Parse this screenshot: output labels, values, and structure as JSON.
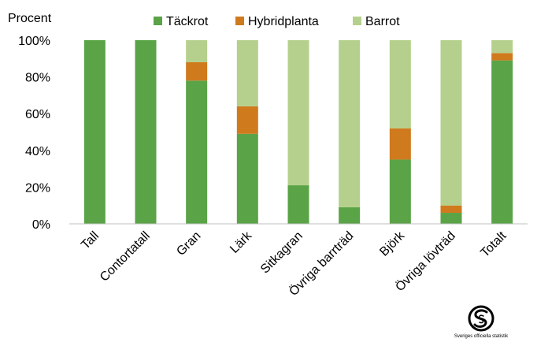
{
  "chart_data": {
    "type": "bar",
    "stacked": true,
    "ylabel": "Procent",
    "xlabel": "",
    "ylim": [
      0,
      100
    ],
    "yticks": [
      0,
      20,
      40,
      60,
      80,
      100
    ],
    "ytick_labels": [
      "0%",
      "20%",
      "40%",
      "60%",
      "80%",
      "100%"
    ],
    "categories": [
      "Tall",
      "Contortatall",
      "Gran",
      "Lärk",
      "Sitkagran",
      "Övriga barrträd",
      "Björk",
      "Övriga lövträd",
      "Totalt"
    ],
    "series": [
      {
        "name": "Täckrot",
        "color": "#5aa346",
        "values": [
          100,
          100,
          78,
          49,
          21,
          9,
          35,
          6,
          89
        ]
      },
      {
        "name": "Hybridplanta",
        "color": "#d07a1e",
        "values": [
          0,
          0,
          10,
          15,
          0,
          0,
          17,
          4,
          4
        ]
      },
      {
        "name": "Barrot",
        "color": "#b5d08c",
        "values": [
          0,
          0,
          12,
          36,
          79,
          91,
          48,
          90,
          7
        ]
      }
    ],
    "legend_position": "top",
    "grid": false
  },
  "logo": {
    "name": "sos-logo-icon",
    "text": "Sveriges officiella statistik"
  }
}
